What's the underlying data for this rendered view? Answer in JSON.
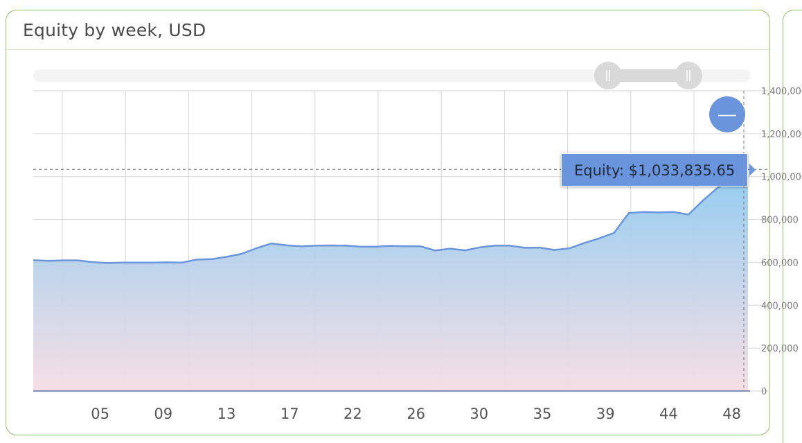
{
  "panel": {
    "title": "Equity by week, USD"
  },
  "tooltip": {
    "text": "Equity: $1,033,835.65"
  },
  "controls": {
    "zoom_out_glyph": "—",
    "scrollbar_range": [
      0.8,
      0.915
    ]
  },
  "colors": {
    "line": "#6a95dc",
    "area_top": "#8ecaf0",
    "area_bottom": "#f5dde3",
    "tooltip_bg": "#6a95dc",
    "frame": "#8fc46a"
  },
  "chart_data": {
    "type": "area",
    "title": "Equity by week, USD",
    "x_tick_labels": [
      "05",
      "09",
      "13",
      "17",
      "22",
      "26",
      "30",
      "35",
      "39",
      "44",
      "48"
    ],
    "y_tick_labels": [
      "0",
      "200,000",
      "400,000",
      "600,000",
      "800,000",
      "1,000,000",
      "1,200,000",
      "1,400,000"
    ],
    "ylim": [
      0,
      1400000
    ],
    "grid": true,
    "series": [
      {
        "values": [
          610000,
          607000,
          609000,
          609000,
          601000,
          597000,
          599000,
          599000,
          599000,
          600000,
          599000,
          613000,
          615000,
          626000,
          640000,
          666000,
          688000,
          680000,
          675000,
          678000,
          679000,
          678000,
          673000,
          673000,
          677000,
          675000,
          675000,
          655000,
          664000,
          656000,
          670000,
          678000,
          678000,
          668000,
          669000,
          658000,
          665000,
          690000,
          712000,
          737000,
          830000,
          835000,
          833000,
          835000,
          823000,
          890000,
          950000,
          985000,
          1033835.65
        ]
      }
    ],
    "highlight": {
      "label": "Equity: $1,033,835.65",
      "value": 1033835.65
    }
  }
}
